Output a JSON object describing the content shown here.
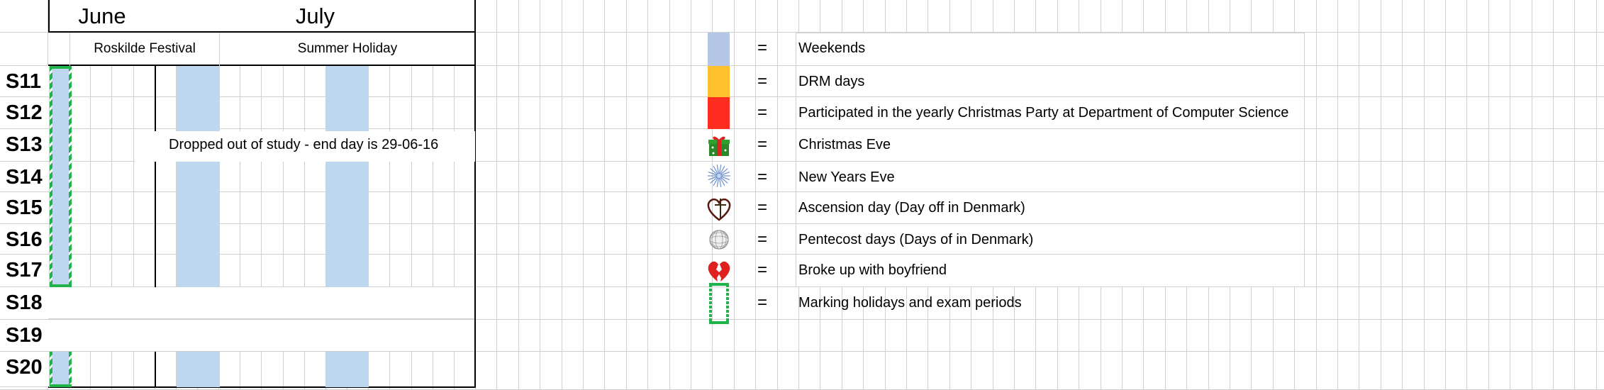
{
  "months": [
    {
      "label": "June"
    },
    {
      "label": "July"
    }
  ],
  "events": [
    {
      "label": "Roskilde Festival"
    },
    {
      "label": "Summer Holiday"
    }
  ],
  "weeks": [
    "S11",
    "S12",
    "S13",
    "S14",
    "S15",
    "S16",
    "S17",
    "S18",
    "S19",
    "S20"
  ],
  "note": "Dropped out of study - end day is 29-06-16",
  "legend": {
    "equals": "=",
    "items": [
      {
        "key": "weekends",
        "label": "Weekends",
        "swatch": "color",
        "color": "#b4c7e7"
      },
      {
        "key": "drm",
        "label": "DRM days",
        "swatch": "color",
        "color": "#ffc12e"
      },
      {
        "key": "christmas-party",
        "label": "Participated in the yearly Christmas Party at Department of Computer Science",
        "swatch": "color",
        "color": "#ff2d20"
      },
      {
        "key": "christmas-eve",
        "label": "Christmas Eve",
        "swatch": "icon",
        "icon": "gift-icon"
      },
      {
        "key": "new-years-eve",
        "label": "New Years Eve",
        "swatch": "icon",
        "icon": "fireworks-icon"
      },
      {
        "key": "ascension",
        "label": "Ascension day (Day off in Denmark)",
        "swatch": "icon",
        "icon": "heart-cross-icon"
      },
      {
        "key": "pentecost",
        "label": "Pentecost days (Days of in Denmark)",
        "swatch": "icon",
        "icon": "disco-ball-icon"
      },
      {
        "key": "breakup",
        "label": "Broke up with boyfriend",
        "swatch": "icon",
        "icon": "broken-heart-icon"
      },
      {
        "key": "holidays",
        "label": "Marking holidays and exam periods",
        "swatch": "icon",
        "icon": "holiday-bracket-icon"
      }
    ]
  },
  "colors": {
    "weekend": "#bdd7ee",
    "holiday_marker": "#20b34a",
    "gridline": "#d0d0d0"
  }
}
